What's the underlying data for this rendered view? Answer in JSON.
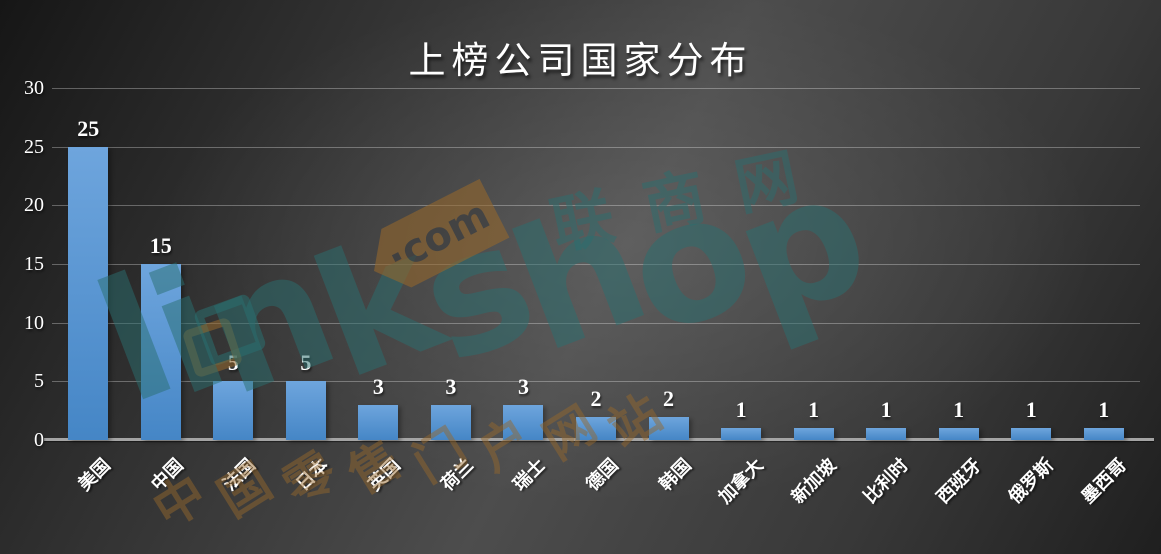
{
  "title": "上榜公司国家分布",
  "watermark": {
    "brand": "linkshop",
    "tld": "·com",
    "site_name": "联商网",
    "slogan": "中国零售门户网站",
    "teal": "#2a6f70",
    "tan": "#96682c"
  },
  "chart_data": {
    "type": "bar",
    "title": "上榜公司国家分布",
    "categories": [
      "美国",
      "中国",
      "法国",
      "日本",
      "英国",
      "荷兰",
      "瑞士",
      "德国",
      "韩国",
      "加拿大",
      "新加坡",
      "比利时",
      "西班牙",
      "俄罗斯",
      "墨西哥"
    ],
    "values": [
      25,
      15,
      5,
      5,
      3,
      3,
      3,
      2,
      2,
      1,
      1,
      1,
      1,
      1,
      1
    ],
    "xlabel": "",
    "ylabel": "",
    "ylim": [
      0,
      30
    ],
    "yticks": [
      0,
      5,
      10,
      15,
      20,
      25,
      30
    ],
    "grid": true,
    "legend": null,
    "bar_color_top": "#6ea5dd",
    "bar_color_bottom": "#4586c6",
    "background": "dark-gray-gradient",
    "label_color": "#ffffff"
  }
}
